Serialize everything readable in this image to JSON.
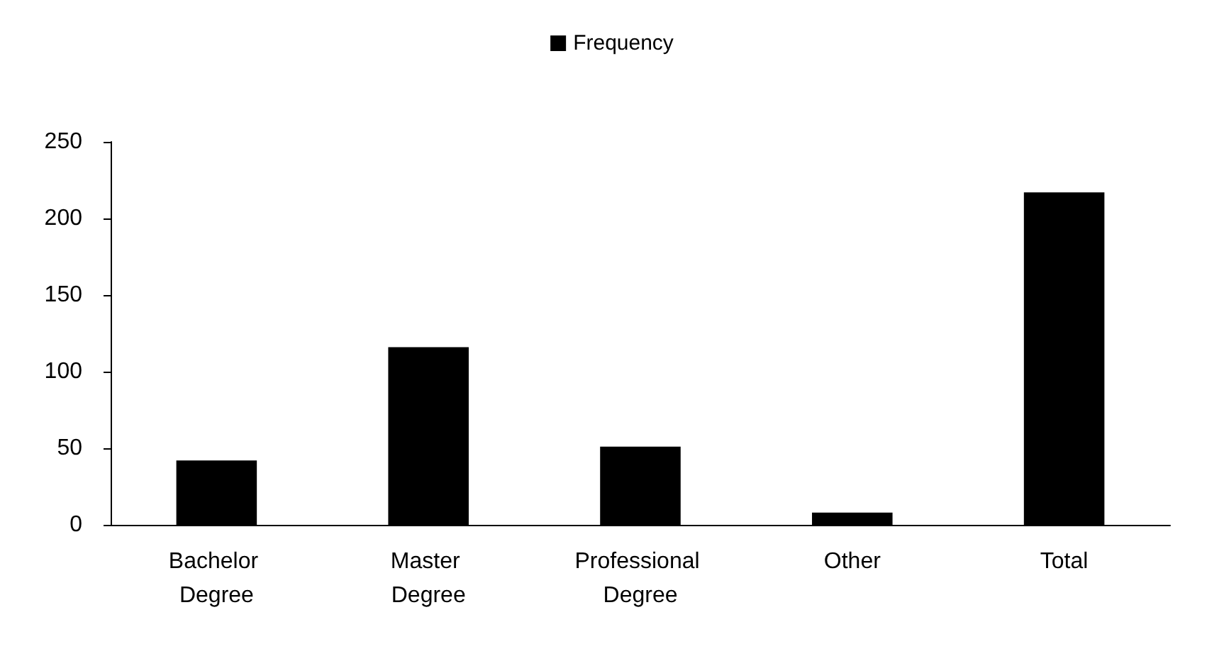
{
  "chart_data": {
    "type": "bar",
    "categories": [
      "Bachelor Degree",
      "Master Degree",
      "Professional Degree",
      "Other",
      "Total"
    ],
    "series": [
      {
        "name": "Frequency",
        "color": "#000000",
        "values": [
          42,
          116,
          51,
          8,
          217
        ]
      }
    ],
    "ylim": [
      0,
      250
    ],
    "yticks": [
      0,
      50,
      100,
      150,
      200,
      250
    ],
    "grid": false,
    "legend": "top"
  }
}
